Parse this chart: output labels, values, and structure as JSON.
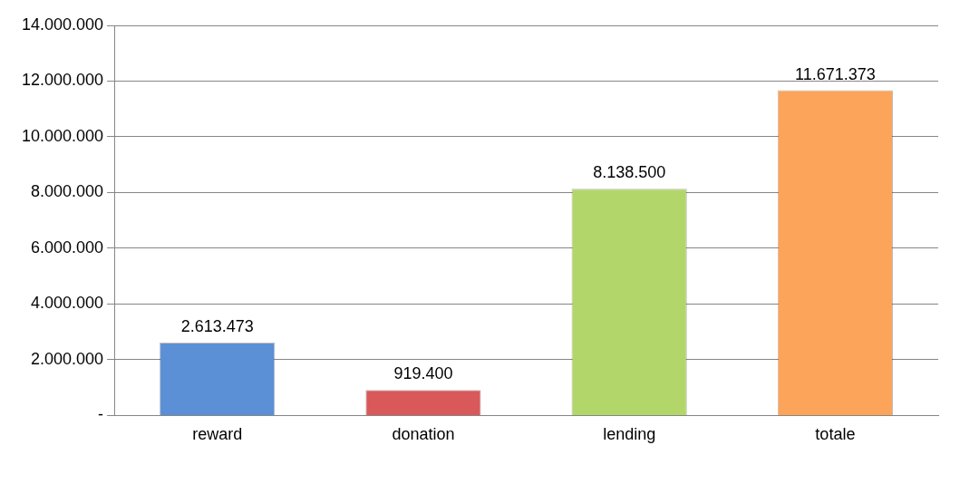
{
  "chart_data": {
    "type": "bar",
    "categories": [
      "reward",
      "donation",
      "lending",
      "totale"
    ],
    "values": [
      2613473,
      919400,
      8138500,
      11671373
    ],
    "colors": [
      "#5b8fd6",
      "#d9585a",
      "#b3d66a",
      "#fba45a"
    ],
    "value_labels": [
      "2.613.473",
      "919.400",
      "8.138.500",
      "11.671.373"
    ],
    "ylim": [
      0,
      14000000
    ],
    "yticks": [
      {
        "value": 0,
        "label": "-"
      },
      {
        "value": 2000000,
        "label": "2.000.000"
      },
      {
        "value": 4000000,
        "label": "4.000.000"
      },
      {
        "value": 6000000,
        "label": "6.000.000"
      },
      {
        "value": 8000000,
        "label": "8.000.000"
      },
      {
        "value": 10000000,
        "label": "10.000.000"
      },
      {
        "value": 12000000,
        "label": "12.000.000"
      },
      {
        "value": 14000000,
        "label": "14.000.000"
      }
    ],
    "grid": "y",
    "legend": false
  }
}
